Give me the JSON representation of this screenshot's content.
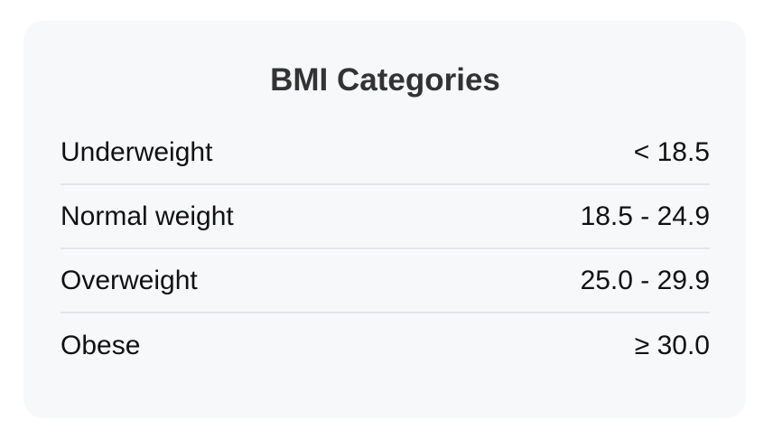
{
  "card": {
    "title": "BMI Categories",
    "rows": [
      {
        "label": "Underweight",
        "value": "< 18.5"
      },
      {
        "label": "Normal weight",
        "value": "18.5 - 24.9"
      },
      {
        "label": "Overweight",
        "value": "25.0 - 29.9"
      },
      {
        "label": "Obese",
        "value": "≥ 30.0"
      }
    ]
  }
}
